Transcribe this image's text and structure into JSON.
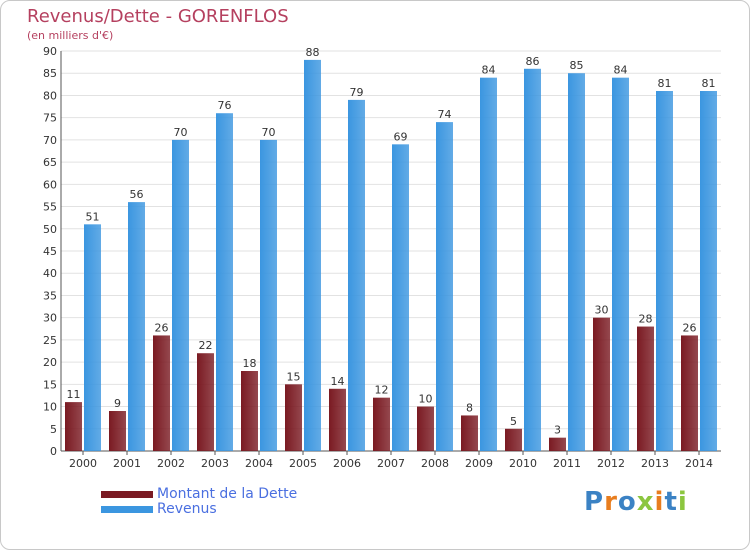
{
  "chart_data": {
    "type": "bar",
    "title": "Revenus/Dette - GORENFLOS",
    "subtitle": "(en milliers d'€)",
    "categories": [
      "2000",
      "2001",
      "2002",
      "2003",
      "2004",
      "2005",
      "2006",
      "2007",
      "2008",
      "2009",
      "2010",
      "2011",
      "2012",
      "2013",
      "2014"
    ],
    "series": [
      {
        "name": "Montant de la Dette",
        "color": "#7a1a22",
        "values": [
          11,
          9,
          26,
          22,
          18,
          15,
          14,
          12,
          10,
          8,
          5,
          3,
          30,
          28,
          26
        ]
      },
      {
        "name": "Revenus",
        "color": "#3b96e0",
        "values": [
          51,
          56,
          70,
          76,
          70,
          88,
          79,
          69,
          74,
          84,
          86,
          85,
          84,
          81,
          81
        ]
      }
    ],
    "ylim": [
      0,
      90
    ],
    "ytick_step": 5,
    "grid": true,
    "legend_position": "bottom-left",
    "colors": {
      "title": "#b5405f",
      "legend_text": "#4a6fe0",
      "grid": "#e2e2e2",
      "axis": "#555555"
    }
  },
  "logo": {
    "text": "Proxiti",
    "icon": "proxiti-logo"
  }
}
